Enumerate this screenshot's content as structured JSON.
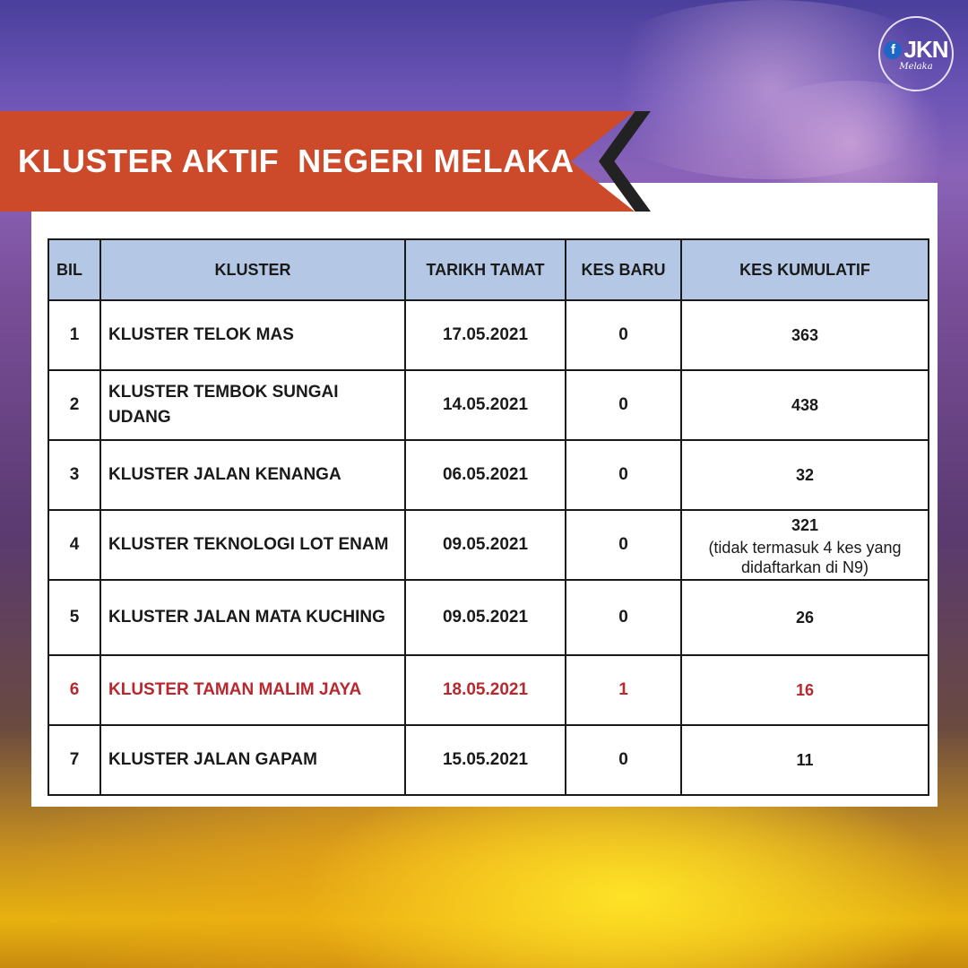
{
  "header": {
    "title": "KLUSTER AKTIF  NEGERI MELAKA",
    "logo": {
      "icon": "facebook-f-icon",
      "text": "JKN",
      "subtitle": "Melaka"
    }
  },
  "colors": {
    "banner": "#cc4a2a",
    "table_header": "#b4c8e6",
    "highlight": "#b8282e"
  },
  "table": {
    "headers": {
      "bil": "BIL",
      "kluster": "KLUSTER",
      "tarikh_tamat": "TARIKH TAMAT",
      "kes_baru": "KES BARU",
      "kes_kumulatif": "KES KUMULATIF"
    },
    "rows": [
      {
        "bil": "1",
        "kluster": "KLUSTER TELOK MAS",
        "tarikh_tamat": "17.05.2021",
        "kes_baru": "0",
        "kes_kumulatif": "363"
      },
      {
        "bil": "2",
        "kluster": "KLUSTER TEMBOK SUNGAI UDANG",
        "tarikh_tamat": "14.05.2021",
        "kes_baru": "0",
        "kes_kumulatif": "438"
      },
      {
        "bil": "3",
        "kluster": "KLUSTER JALAN KENANGA",
        "tarikh_tamat": "06.05.2021",
        "kes_baru": "0",
        "kes_kumulatif": "32"
      },
      {
        "bil": "4",
        "kluster": "KLUSTER TEKNOLOGI LOT ENAM",
        "tarikh_tamat": "09.05.2021",
        "kes_baru": "0",
        "kes_kumulatif": "321",
        "note": "(tidak termasuk 4 kes yang didaftarkan di N9)"
      },
      {
        "bil": "5",
        "kluster": "KLUSTER JALAN MATA KUCHING",
        "tarikh_tamat": "09.05.2021",
        "kes_baru": "0",
        "kes_kumulatif": "26"
      },
      {
        "bil": "6",
        "kluster": "KLUSTER TAMAN MALIM JAYA",
        "tarikh_tamat": "18.05.2021",
        "kes_baru": "1",
        "kes_kumulatif": "16",
        "highlight": true
      },
      {
        "bil": "7",
        "kluster": "KLUSTER JALAN GAPAM",
        "tarikh_tamat": "15.05.2021",
        "kes_baru": "0",
        "kes_kumulatif": "11"
      }
    ]
  }
}
